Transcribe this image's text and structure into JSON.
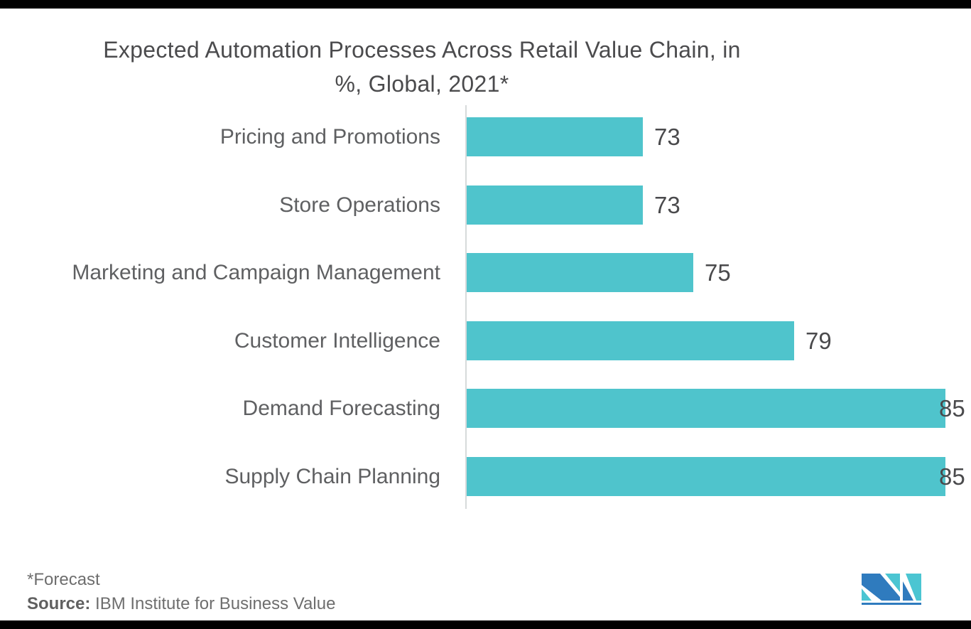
{
  "chart_data": {
    "type": "bar",
    "orientation": "horizontal",
    "title": "Expected Automation Processes Across Retail Value Chain, in %, Global, 2021*",
    "title_lines": [
      "Expected Automation Processes Across Retail Value Chain, in",
      "%, Global, 2021*"
    ],
    "categories": [
      "Pricing and Promotions",
      "Store Operations",
      "Marketing and Campaign Management",
      "Customer Intelligence",
      "Demand Forecasting",
      "Supply Chain Planning"
    ],
    "values": [
      73,
      73,
      75,
      79,
      85,
      85
    ],
    "unit": "%",
    "xlim": [
      66,
      85
    ],
    "grid": false,
    "legend": false,
    "bar_color": "#4fc4cc",
    "value_label_color": "#4a4a4c",
    "category_label_color": "#5f6062"
  },
  "footer": {
    "note": "*Forecast",
    "source_label": "Source:",
    "source_text": "IBM Institute for Business Value"
  },
  "logo": {
    "name": "Mordor Intelligence MI logo",
    "blue": "#2f7bbe",
    "teal": "#4bc5d2"
  },
  "colors": {
    "background": "#ffffff",
    "title_text": "#4b4b4d",
    "axis_line": "#d7dadb",
    "border_strips": "#000000"
  }
}
